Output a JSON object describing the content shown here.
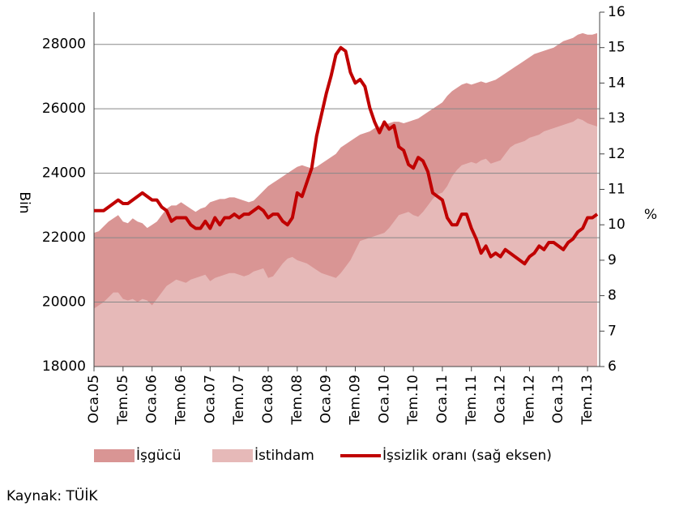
{
  "chart_data": {
    "type": "area",
    "y_label": "Bin",
    "y2_label": "%",
    "source": "Kaynak: TÜİK",
    "categories": [
      "Oca.05",
      null,
      null,
      null,
      null,
      null,
      "Tem.05",
      null,
      null,
      null,
      null,
      null,
      "Oca.06",
      null,
      null,
      null,
      null,
      null,
      "Tem.06",
      null,
      null,
      null,
      null,
      null,
      "Oca.07",
      null,
      null,
      null,
      null,
      null,
      "Tem.07",
      null,
      null,
      null,
      null,
      null,
      "Oca.08",
      null,
      null,
      null,
      null,
      null,
      "Tem.08",
      null,
      null,
      null,
      null,
      null,
      "Oca.09",
      null,
      null,
      null,
      null,
      null,
      "Tem.09",
      null,
      null,
      null,
      null,
      null,
      "Oca.10",
      null,
      null,
      null,
      null,
      null,
      "Tem.10",
      null,
      null,
      null,
      null,
      null,
      "Oca.11",
      null,
      null,
      null,
      null,
      null,
      "Tem.11",
      null,
      null,
      null,
      null,
      null,
      "Oca.12",
      null,
      null,
      null,
      null,
      null,
      "Tem.12",
      null,
      null,
      null,
      null,
      null,
      "Oca.13",
      null,
      null,
      null,
      null,
      null,
      "Tem.13",
      null,
      null
    ],
    "series": [
      {
        "name": "İşgücü",
        "type": "area",
        "color": "#d99594",
        "values": [
          22150,
          22200,
          22350,
          22500,
          22600,
          22700,
          22500,
          22450,
          22600,
          22500,
          22450,
          22300,
          22400,
          22500,
          22700,
          22900,
          23000,
          23000,
          23100,
          23000,
          22900,
          22800,
          22900,
          22950,
          23100,
          23150,
          23200,
          23200,
          23250,
          23250,
          23200,
          23150,
          23100,
          23150,
          23300,
          23450,
          23600,
          23700,
          23800,
          23900,
          24000,
          24100,
          24200,
          24250,
          24200,
          24150,
          24200,
          24300,
          24400,
          24500,
          24600,
          24800,
          24900,
          25000,
          25100,
          25200,
          25250,
          25300,
          25400,
          25450,
          25500,
          25550,
          25600,
          25600,
          25550,
          25600,
          25650,
          25700,
          25800,
          25900,
          26000,
          26100,
          26200,
          26400,
          26550,
          26650,
          26750,
          26800,
          26750,
          26800,
          26850,
          26800,
          26850,
          26900,
          27000,
          27100,
          27200,
          27300,
          27400,
          27500,
          27600,
          27700,
          27750,
          27800,
          27850,
          27900,
          28000,
          28100,
          28150,
          28200,
          28300,
          28350,
          28300,
          28300,
          28350
        ]
      },
      {
        "name": "İstihdam",
        "type": "area",
        "color": "#e6b9b8",
        "values": [
          19800,
          19900,
          20000,
          20150,
          20300,
          20300,
          20100,
          20050,
          20100,
          20000,
          20100,
          20050,
          19900,
          20100,
          20300,
          20500,
          20600,
          20700,
          20650,
          20600,
          20700,
          20750,
          20800,
          20850,
          20650,
          20750,
          20800,
          20850,
          20900,
          20900,
          20850,
          20800,
          20850,
          20950,
          21000,
          21050,
          20750,
          20800,
          21000,
          21200,
          21350,
          21400,
          21300,
          21250,
          21200,
          21100,
          21000,
          20900,
          20850,
          20800,
          20750,
          20900,
          21100,
          21300,
          21600,
          21900,
          21950,
          22000,
          22050,
          22100,
          22150,
          22300,
          22500,
          22700,
          22750,
          22800,
          22700,
          22650,
          22800,
          23000,
          23200,
          23350,
          23400,
          23600,
          23900,
          24100,
          24250,
          24300,
          24350,
          24300,
          24400,
          24450,
          24300,
          24350,
          24400,
          24600,
          24800,
          24900,
          24950,
          25000,
          25100,
          25150,
          25200,
          25300,
          25350,
          25400,
          25450,
          25500,
          25550,
          25600,
          25700,
          25650,
          25550,
          25500,
          25450
        ]
      },
      {
        "name": "İşsizlik oranı (sağ eksen)",
        "type": "line",
        "axis": "y2",
        "color": "#c00000",
        "values": [
          10.4,
          10.4,
          10.4,
          10.5,
          10.6,
          10.7,
          10.6,
          10.6,
          10.7,
          10.8,
          10.9,
          10.8,
          10.7,
          10.7,
          10.5,
          10.4,
          10.1,
          10.2,
          10.2,
          10.2,
          10.0,
          9.9,
          9.9,
          10.1,
          9.9,
          10.2,
          10.0,
          10.2,
          10.2,
          10.3,
          10.2,
          10.3,
          10.3,
          10.4,
          10.5,
          10.4,
          10.2,
          10.3,
          10.3,
          10.1,
          10.0,
          10.2,
          10.9,
          10.8,
          11.2,
          11.6,
          12.5,
          13.1,
          13.7,
          14.2,
          14.8,
          15.0,
          14.9,
          14.3,
          14.0,
          14.1,
          13.9,
          13.3,
          12.9,
          12.6,
          12.9,
          12.7,
          12.8,
          12.2,
          12.1,
          11.7,
          11.6,
          11.9,
          11.8,
          11.5,
          10.9,
          10.8,
          10.7,
          10.2,
          10.0,
          10.0,
          10.3,
          10.3,
          9.9,
          9.6,
          9.2,
          9.4,
          9.1,
          9.2,
          9.1,
          9.3,
          9.2,
          9.1,
          9.0,
          8.9,
          9.1,
          9.2,
          9.4,
          9.3,
          9.5,
          9.5,
          9.4,
          9.3,
          9.5,
          9.6,
          9.8,
          9.9,
          10.2,
          10.2,
          10.3
        ]
      }
    ],
    "ylim": [
      18000,
      29000
    ],
    "yticks": [
      18000,
      20000,
      22000,
      24000,
      26000,
      28000
    ],
    "y2lim": [
      6,
      16
    ],
    "y2ticks": [
      6,
      7,
      8,
      9,
      10,
      11,
      12,
      13,
      14,
      15,
      16
    ],
    "grid": true,
    "legend": "bottom"
  }
}
